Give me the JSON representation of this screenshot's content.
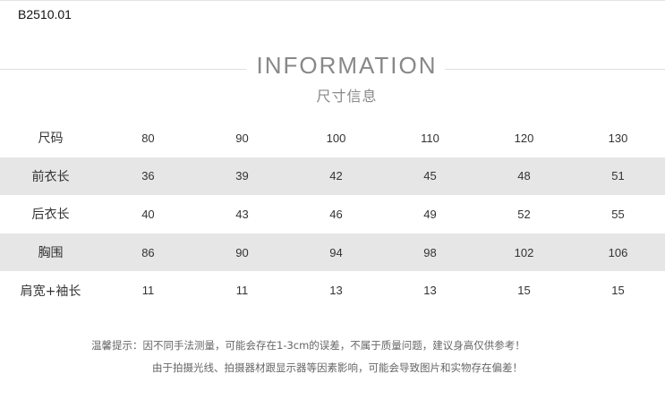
{
  "product_code": "B2510.01",
  "header": {
    "title": "INFORMATION",
    "subtitle": "尺寸信息"
  },
  "table": {
    "rows": [
      {
        "label": "尺码",
        "values": [
          "80",
          "90",
          "100",
          "110",
          "120",
          "130"
        ],
        "shaded": false
      },
      {
        "label": "前衣长",
        "values": [
          "36",
          "39",
          "42",
          "45",
          "48",
          "51"
        ],
        "shaded": true
      },
      {
        "label": "后衣长",
        "values": [
          "40",
          "43",
          "46",
          "49",
          "52",
          "55"
        ],
        "shaded": false
      },
      {
        "label": "胸围",
        "values": [
          "86",
          "90",
          "94",
          "98",
          "102",
          "106"
        ],
        "shaded": true
      },
      {
        "label": "肩宽+袖长",
        "values": [
          "11",
          "11",
          "13",
          "13",
          "15",
          "15"
        ],
        "shaded": false
      }
    ]
  },
  "notes": {
    "line1": "温馨提示：因不同手法测量，可能会存在1-3cm的误差，不属于质量问题，建议身高仅供参考！",
    "line2": "由于拍摄光线、拍摄器材跟显示器等因素影响，可能会导致图片和实物存在偏差！"
  }
}
